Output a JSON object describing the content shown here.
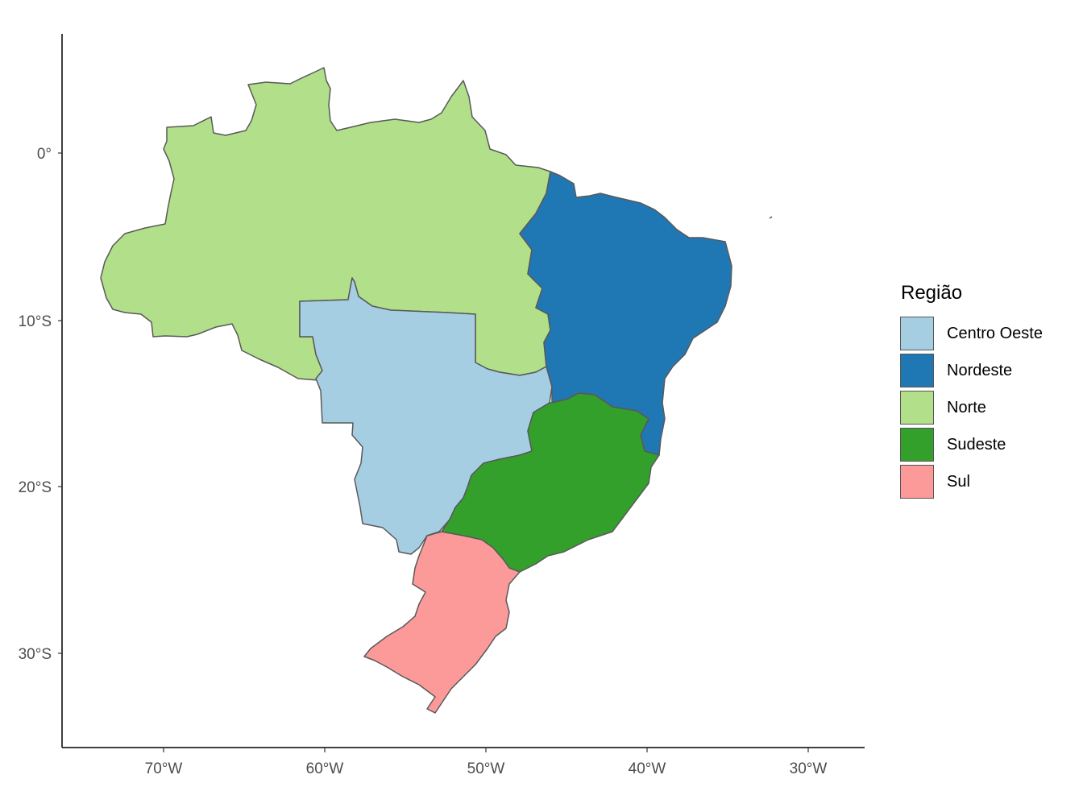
{
  "map": {
    "x_ticks": [
      "70°W",
      "60°W",
      "50°W",
      "40°W",
      "30°W"
    ],
    "y_ticks": [
      "0°",
      "10°S",
      "20°S",
      "30°S"
    ],
    "regions": [
      {
        "name": "Centro Oeste",
        "color": "#a6cee3"
      },
      {
        "name": "Nordeste",
        "color": "#1f78b4"
      },
      {
        "name": "Norte",
        "color": "#b2df8a"
      },
      {
        "name": "Sudeste",
        "color": "#33a02c"
      },
      {
        "name": "Sul",
        "color": "#fb9a99"
      }
    ],
    "border_color": "#595959"
  },
  "legend": {
    "title": "Região",
    "items": [
      "Centro Oeste",
      "Nordeste",
      "Norte",
      "Sudeste",
      "Sul"
    ]
  }
}
